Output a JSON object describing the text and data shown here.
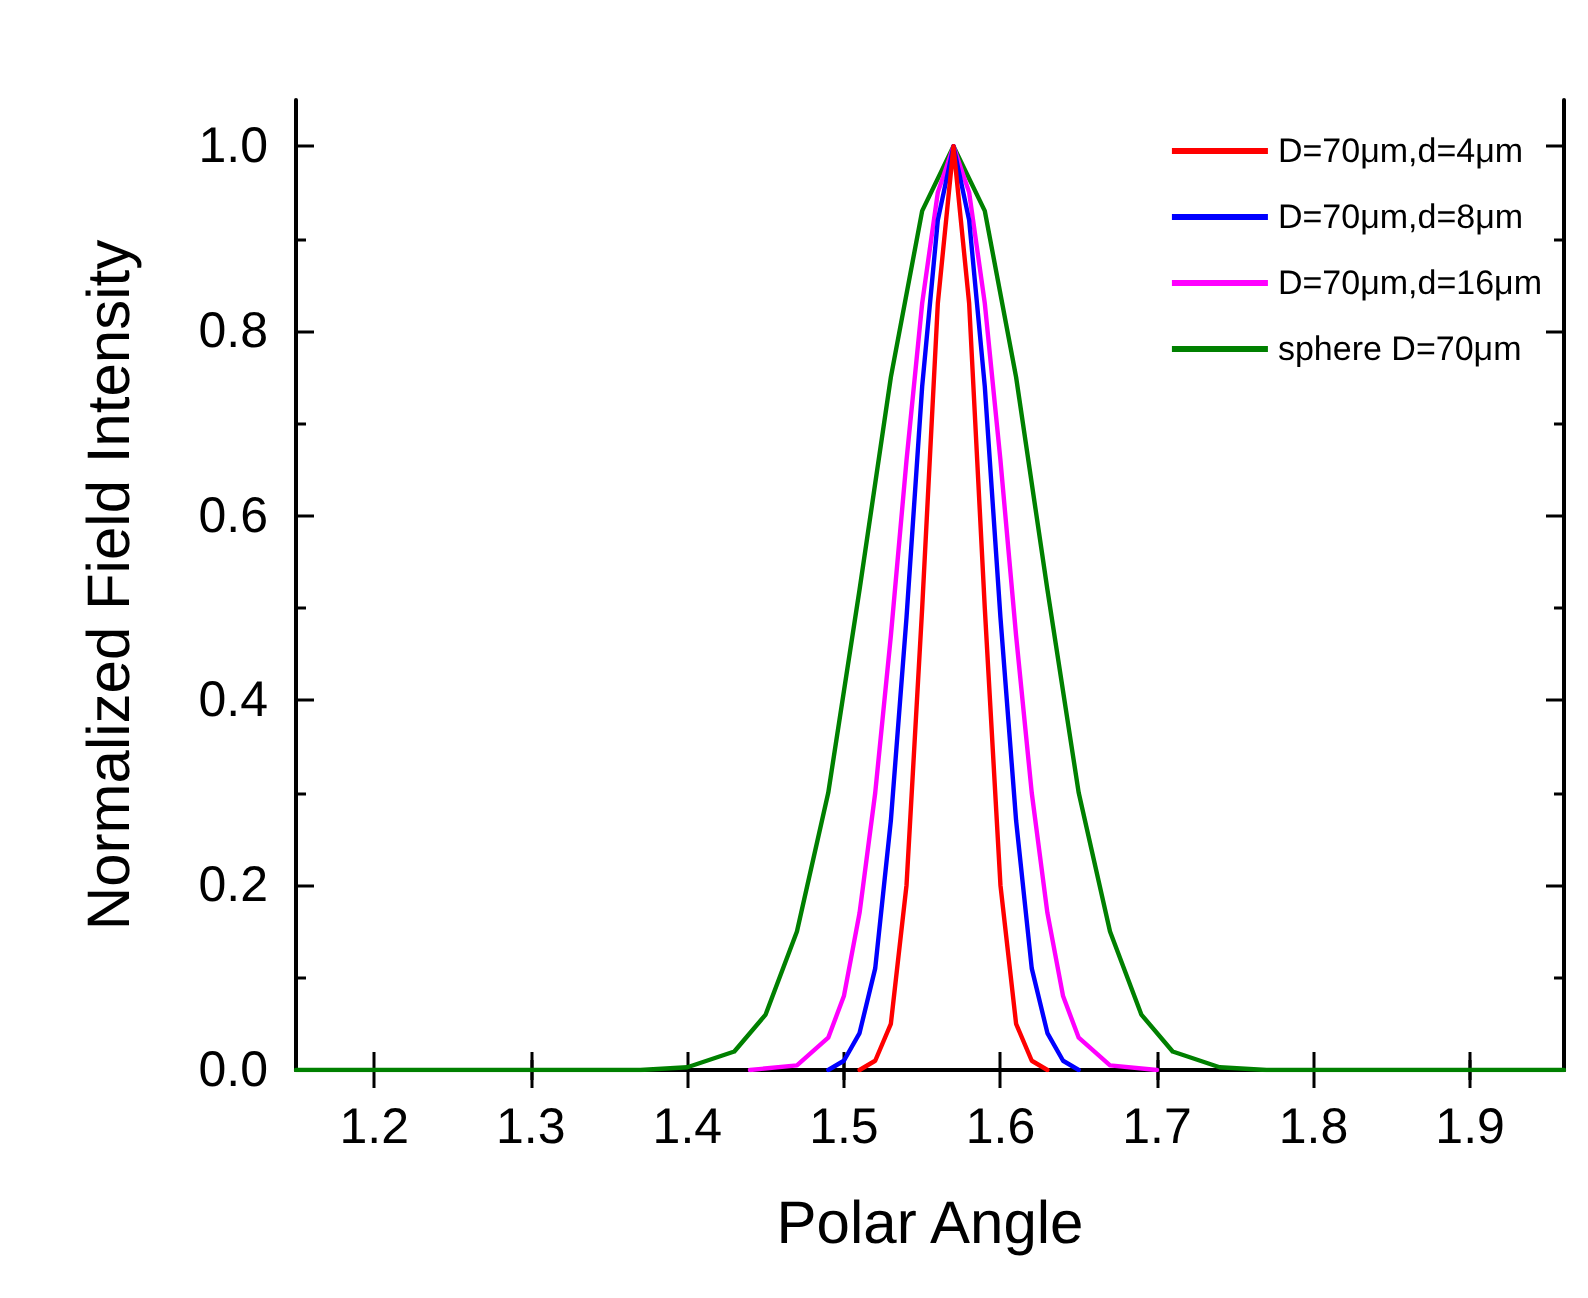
{
  "chart_data": {
    "type": "line",
    "xlabel": "Polar Angle",
    "ylabel": "Normalized Field Intensity",
    "xlim": [
      1.15,
      1.96
    ],
    "xticks": [
      1.2,
      1.3,
      1.4,
      1.5,
      1.6,
      1.7,
      1.8,
      1.9
    ],
    "ylim": [
      0,
      1.05
    ],
    "yticks": [
      {
        "value": 0,
        "label": "0.0"
      },
      {
        "value": 0.2,
        "label": "0.2"
      },
      {
        "value": 0.4,
        "label": "0.4"
      },
      {
        "value": 0.6,
        "label": "0.6"
      },
      {
        "value": 0.8,
        "label": "0.8"
      },
      {
        "value": 1,
        "label": "1.0"
      }
    ],
    "legend": "top right",
    "marker": "none",
    "line_style": "solid",
    "grid": false,
    "series": [
      {
        "name": "D=70μm,d=4μm",
        "color": "#ff0000",
        "x": [
          1.51,
          1.52,
          1.53,
          1.54,
          1.55,
          1.56,
          1.57,
          1.58,
          1.59,
          1.6,
          1.61,
          1.62,
          1.63
        ],
        "values": [
          0,
          0.01,
          0.05,
          0.2,
          0.5,
          0.83,
          1,
          0.83,
          0.5,
          0.2,
          0.05,
          0.01,
          0
        ]
      },
      {
        "name": "D=70μm,d=8μm",
        "color": "#0000ff",
        "x": [
          1.49,
          1.5,
          1.51,
          1.52,
          1.53,
          1.54,
          1.55,
          1.56,
          1.57,
          1.58,
          1.59,
          1.6,
          1.61,
          1.62,
          1.63,
          1.64,
          1.65
        ],
        "values": [
          0,
          0.01,
          0.04,
          0.11,
          0.27,
          0.49,
          0.74,
          0.92,
          1,
          0.92,
          0.74,
          0.49,
          0.27,
          0.11,
          0.04,
          0.01,
          0
        ]
      },
      {
        "name": "D=70μm,d=16μm",
        "color": "#ff00ff",
        "x": [
          1.44,
          1.47,
          1.49,
          1.5,
          1.51,
          1.52,
          1.53,
          1.54,
          1.55,
          1.56,
          1.57,
          1.58,
          1.59,
          1.6,
          1.61,
          1.62,
          1.63,
          1.64,
          1.65,
          1.67,
          1.7
        ],
        "values": [
          0,
          0.005,
          0.035,
          0.08,
          0.17,
          0.3,
          0.47,
          0.66,
          0.83,
          0.95,
          1,
          0.95,
          0.83,
          0.66,
          0.47,
          0.3,
          0.17,
          0.08,
          0.035,
          0.005,
          0
        ]
      },
      {
        "name": "sphere D=70μm",
        "color": "#008000",
        "x": [
          1.15,
          1.37,
          1.4,
          1.43,
          1.45,
          1.47,
          1.49,
          1.51,
          1.53,
          1.55,
          1.57,
          1.59,
          1.61,
          1.63,
          1.65,
          1.67,
          1.69,
          1.71,
          1.74,
          1.77,
          1.96
        ],
        "values": [
          0,
          0,
          0.003,
          0.02,
          0.06,
          0.15,
          0.3,
          0.52,
          0.75,
          0.93,
          1,
          0.93,
          0.75,
          0.52,
          0.3,
          0.15,
          0.06,
          0.02,
          0.003,
          0,
          0
        ]
      }
    ]
  }
}
